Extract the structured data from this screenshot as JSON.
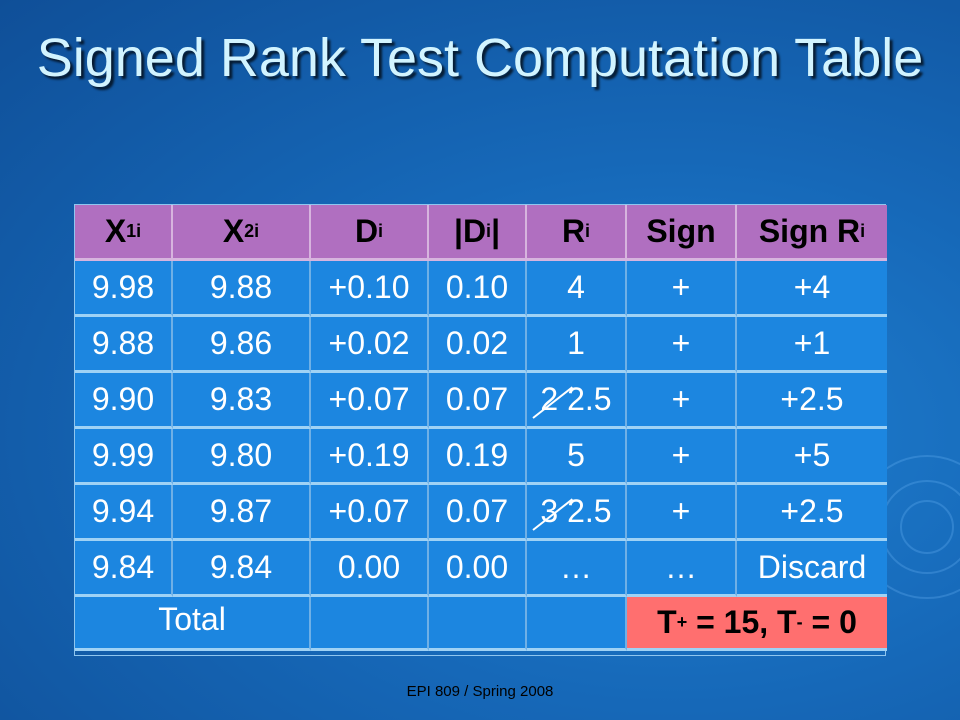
{
  "slide": {
    "title": "Signed Rank Test Computation Table",
    "footer": "EPI 809 / Spring 2008"
  },
  "table": {
    "headers": [
      {
        "base": "X",
        "sub": "1i"
      },
      {
        "base": "X",
        "sub": "2i"
      },
      {
        "base": "D",
        "sub": "i"
      },
      {
        "base": "|D",
        "sub": "i",
        "suffix": "|"
      },
      {
        "base": "R",
        "sub": "i"
      },
      {
        "base": "Sign",
        "sub": ""
      },
      {
        "base": "Sign R",
        "sub": "i"
      }
    ],
    "rows": [
      [
        "9.98",
        "9.88",
        "+0.10",
        "0.10",
        "4",
        "+",
        "+4"
      ],
      [
        "9.88",
        "9.86",
        "+0.02",
        "0.02",
        "1",
        "+",
        "+1"
      ],
      [
        "9.90",
        "9.83",
        "+0.07",
        "0.07",
        "2 2.5",
        "+",
        "+2.5"
      ],
      [
        "9.99",
        "9.80",
        "+0.19",
        "0.19",
        "5",
        "+",
        "+5"
      ],
      [
        "9.94",
        "9.87",
        "+0.07",
        "0.07",
        "3 2.5",
        "+",
        "+2.5"
      ],
      [
        "9.84",
        "9.84",
        "0.00",
        "0.00",
        "…",
        "…",
        "Discard"
      ]
    ],
    "total_label": "Total",
    "result": {
      "t_plus_base": "T",
      "t_plus_sub": "+",
      "t_plus_val": " = 15, ",
      "t_minus_base": "T",
      "t_minus_sub": "-",
      "t_minus_val": " = 0"
    }
  }
}
